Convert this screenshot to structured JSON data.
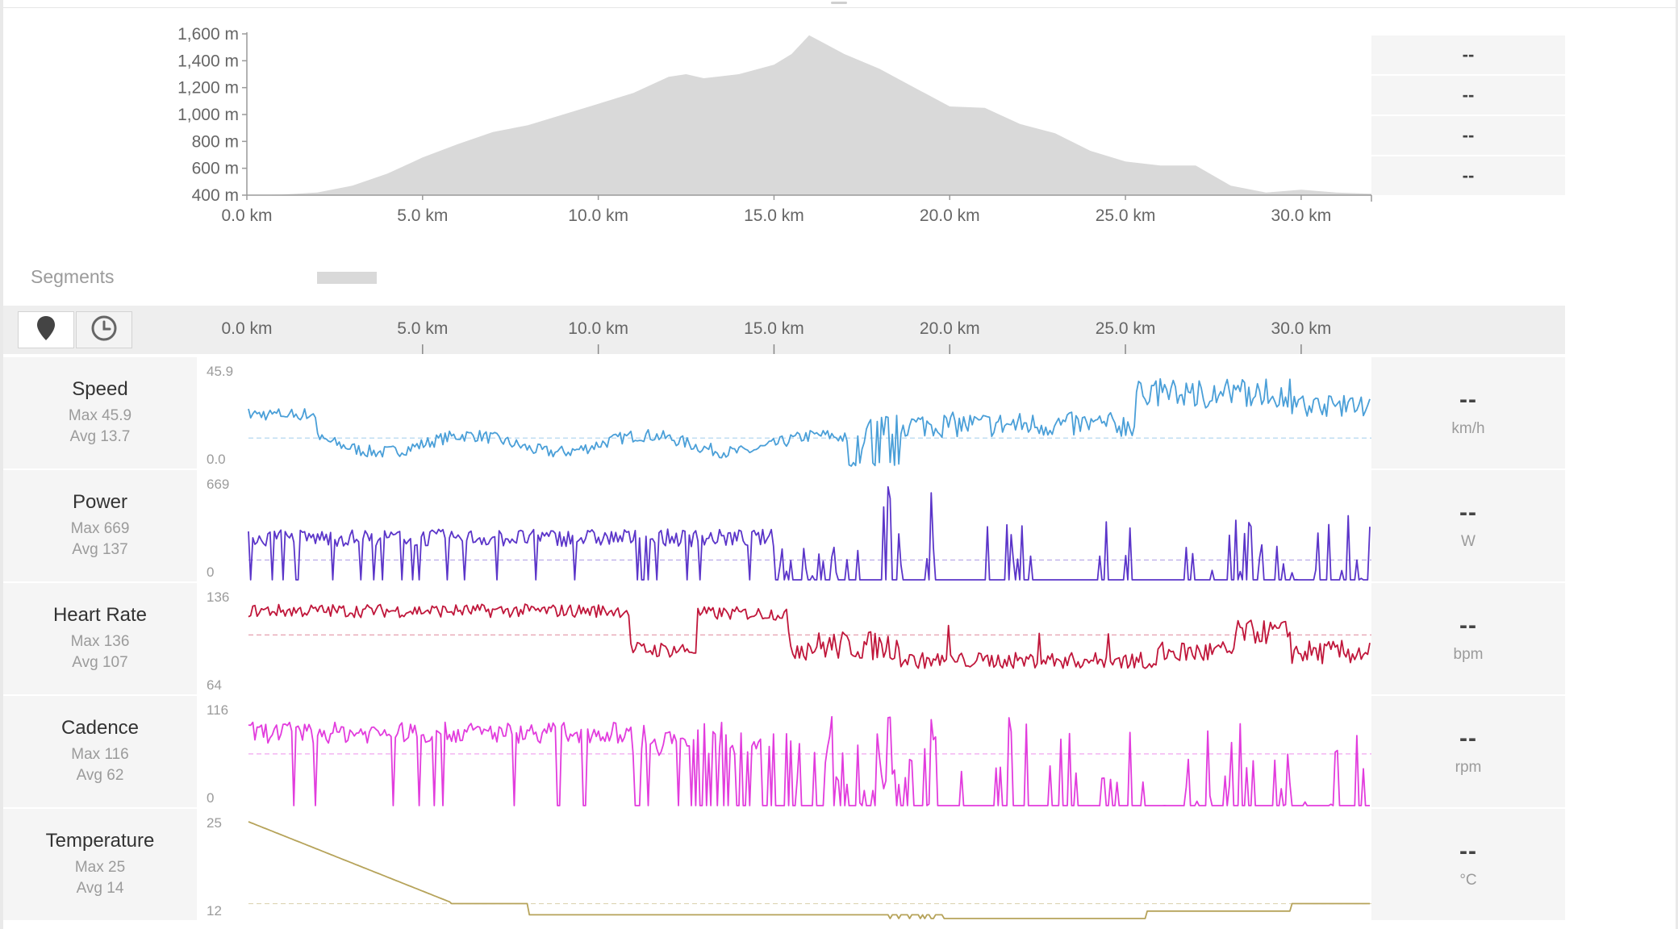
{
  "elevation": {
    "y_ticks": [
      "1,600 m",
      "1,400 m",
      "1,200 m",
      "1,000 m",
      "800 m",
      "600 m",
      "400 m"
    ],
    "x_ticks": [
      "0.0 km",
      "5.0 km",
      "10.0 km",
      "15.0 km",
      "20.0 km",
      "25.0 km",
      "30.0 km"
    ],
    "fill_color": "#d9d9d9"
  },
  "chart_data": {
    "type": "area",
    "xlabel": "",
    "ylabel": "",
    "xlim": [
      0,
      32.0
    ],
    "ylim": [
      400,
      1600
    ],
    "x": [
      0,
      1,
      2,
      3,
      4,
      5,
      6,
      7,
      8,
      9,
      10,
      11,
      12,
      12.5,
      13,
      14,
      15,
      15.5,
      16,
      17,
      18,
      19,
      20,
      21,
      22,
      23,
      24,
      25,
      26,
      27,
      28,
      29,
      30,
      31,
      32
    ],
    "values": [
      400,
      405,
      420,
      470,
      560,
      680,
      780,
      870,
      920,
      1000,
      1080,
      1160,
      1280,
      1300,
      1270,
      1300,
      1370,
      1450,
      1590,
      1450,
      1340,
      1200,
      1060,
      1050,
      930,
      860,
      730,
      650,
      620,
      620,
      470,
      420,
      440,
      420,
      410
    ]
  },
  "side_panel": {
    "values": [
      "--",
      "--",
      "--",
      "--"
    ]
  },
  "segments": {
    "label": "Segments"
  },
  "toolbar": {
    "buttons": [
      {
        "icon": "map-pin-icon",
        "active": true
      },
      {
        "icon": "clock-icon",
        "active": false
      }
    ],
    "distance_ticks": [
      "0.0 km",
      "5.0 km",
      "10.0 km",
      "15.0 km",
      "20.0 km",
      "25.0 km",
      "30.0 km"
    ]
  },
  "metrics": [
    {
      "name": "Speed",
      "max": "Max 45.9",
      "avg": "Avg 13.7",
      "top": "45.9",
      "bottom": "0.0",
      "value": "--",
      "unit": "km/h",
      "color": "#4a9fd8",
      "base": 0,
      "range": 45.9,
      "mean": 13.7,
      "kind": "speed"
    },
    {
      "name": "Power",
      "max": "Max 669",
      "avg": "Avg 137",
      "top": "669",
      "bottom": "0",
      "value": "--",
      "unit": "W",
      "color": "#5b35c9",
      "base": 0,
      "range": 669,
      "mean": 137,
      "kind": "power"
    },
    {
      "name": "Heart Rate",
      "max": "Max 136",
      "avg": "Avg 107",
      "top": "136",
      "bottom": "64",
      "value": "--",
      "unit": "bpm",
      "color": "#c0173b",
      "base": 64,
      "range": 72,
      "mean": 107,
      "kind": "hr"
    },
    {
      "name": "Cadence",
      "max": "Max 116",
      "avg": "Avg 62",
      "top": "116",
      "bottom": "0",
      "value": "--",
      "unit": "rpm",
      "color": "#e23cdd",
      "base": 0,
      "range": 116,
      "mean": 62,
      "kind": "cadence"
    },
    {
      "name": "Temperature",
      "max": "Max 25",
      "avg": "Avg 14",
      "top": "25",
      "bottom": "12",
      "value": "--",
      "unit": "°C",
      "color": "#b6a35a",
      "base": 12,
      "range": 13,
      "mean": 14,
      "kind": "temp"
    }
  ]
}
